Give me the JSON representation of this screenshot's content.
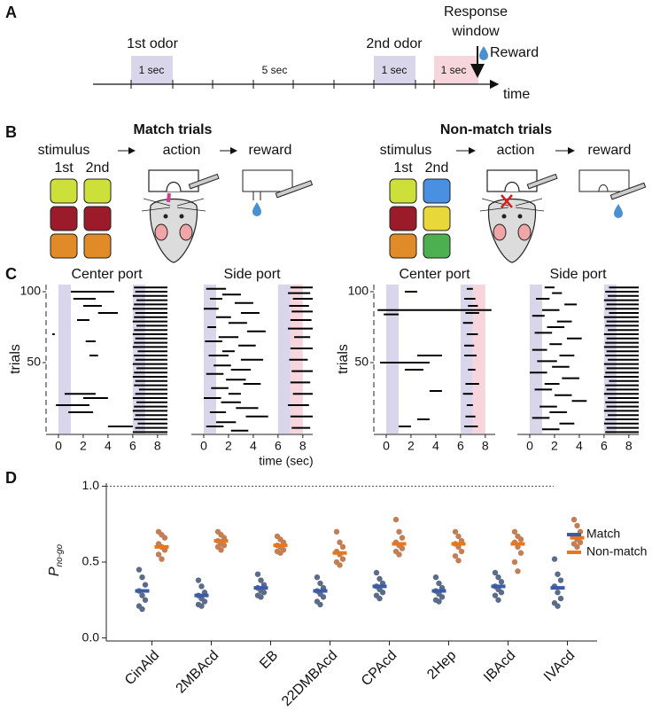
{
  "panel_a": {
    "label": "A",
    "first_odor": "1st odor",
    "second_odor": "2nd odor",
    "durations": [
      "1 sec",
      "5 sec",
      "1 sec",
      "1 sec"
    ],
    "response": [
      "Response",
      "window"
    ],
    "reward": "Reward",
    "time": "time"
  },
  "panel_b": {
    "label": "B",
    "match": {
      "title": "Match trials",
      "stimulus": "stimulus",
      "action": "action",
      "reward": "reward",
      "first": "1st",
      "second": "2nd"
    },
    "nonmatch": {
      "title": "Non-match trials",
      "stimulus": "stimulus",
      "action": "action",
      "reward": "reward",
      "first": "1st",
      "second": "2nd"
    }
  },
  "panel_c": {
    "label": "C"
  },
  "panel_d": {
    "label": "D"
  },
  "chart_data": [
    {
      "type": "raster",
      "title": "Center port",
      "ylabel": "trials",
      "xlim": [
        -1,
        8.8
      ],
      "ylim": [
        0,
        105
      ],
      "xticks": [
        0,
        2,
        4,
        6,
        8
      ],
      "yticks": [
        50,
        100
      ],
      "shading": [
        {
          "start": 0,
          "end": 1,
          "color": "#d9d5ea"
        },
        {
          "start": 6,
          "end": 7,
          "color": "#d9d5ea"
        }
      ],
      "bouts": [
        [
          100,
          1.0,
          4.5
        ],
        [
          95,
          1.2,
          3.0
        ],
        [
          90,
          2.0,
          3.5
        ],
        [
          85,
          3.2,
          4.8
        ],
        [
          80,
          1.5,
          2.5
        ],
        [
          70,
          -0.5,
          -0.3
        ],
        [
          65,
          2.2,
          3.0
        ],
        [
          55,
          2.5,
          3.2
        ],
        [
          28,
          0.5,
          3.0
        ],
        [
          25,
          2.0,
          4.0
        ],
        [
          20,
          -0.2,
          2.5
        ],
        [
          15,
          0.8,
          2.8
        ],
        [
          5,
          4.0,
          6.0
        ],
        [
          103,
          6.1,
          8.8
        ],
        [
          100,
          6.2,
          8.8
        ],
        [
          97,
          6.0,
          8.8
        ],
        [
          94,
          6.3,
          8.8
        ],
        [
          91,
          6.1,
          8.8
        ],
        [
          88,
          6.0,
          8.8
        ],
        [
          85,
          6.2,
          8.8
        ],
        [
          82,
          6.1,
          8.8
        ],
        [
          79,
          6.0,
          8.8
        ],
        [
          76,
          6.3,
          8.8
        ],
        [
          73,
          6.1,
          8.8
        ],
        [
          70,
          6.0,
          8.8
        ],
        [
          67,
          6.2,
          8.8
        ],
        [
          64,
          6.1,
          8.8
        ],
        [
          61,
          6.0,
          8.8
        ],
        [
          58,
          6.4,
          8.8
        ],
        [
          55,
          6.1,
          8.8
        ],
        [
          52,
          6.2,
          8.8
        ],
        [
          49,
          6.0,
          8.8
        ],
        [
          46,
          6.3,
          8.8
        ],
        [
          43,
          6.1,
          8.8
        ],
        [
          40,
          6.0,
          8.8
        ],
        [
          37,
          6.2,
          8.8
        ],
        [
          34,
          6.1,
          8.8
        ],
        [
          31,
          6.5,
          8.8
        ],
        [
          28,
          6.2,
          8.8
        ],
        [
          25,
          6.0,
          8.8
        ],
        [
          22,
          6.3,
          8.8
        ],
        [
          19,
          6.1,
          8.8
        ],
        [
          16,
          6.0,
          8.8
        ],
        [
          13,
          6.2,
          8.8
        ],
        [
          10,
          6.1,
          8.8
        ],
        [
          7,
          6.4,
          8.8
        ],
        [
          4,
          6.2,
          8.8
        ],
        [
          1,
          6.0,
          8.8
        ]
      ]
    },
    {
      "type": "raster",
      "title": "Side port",
      "xlabel": "time (sec)",
      "xlim": [
        -1,
        8.8
      ],
      "ylim": [
        0,
        105
      ],
      "xticks": [
        0,
        2,
        4,
        6,
        8
      ],
      "shading": [
        {
          "start": 0,
          "end": 1,
          "color": "#d9d5ea"
        },
        {
          "start": 6,
          "end": 7,
          "color": "#d9d5ea"
        },
        {
          "start": 7,
          "end": 8,
          "color": "#f6d6dc"
        }
      ],
      "bouts": [
        [
          102,
          0.2,
          1.8
        ],
        [
          98,
          1.5,
          3.0
        ],
        [
          95,
          0.5,
          1.5
        ],
        [
          92,
          2.5,
          4.0
        ],
        [
          88,
          0.0,
          1.2
        ],
        [
          85,
          3.0,
          4.5
        ],
        [
          82,
          1.0,
          2.2
        ],
        [
          78,
          2.0,
          3.5
        ],
        [
          75,
          0.3,
          1.0
        ],
        [
          72,
          3.5,
          5.0
        ],
        [
          68,
          1.2,
          2.8
        ],
        [
          65,
          0.1,
          1.5
        ],
        [
          62,
          2.8,
          4.2
        ],
        [
          58,
          1.5,
          2.5
        ],
        [
          55,
          0.4,
          2.0
        ],
        [
          52,
          3.0,
          4.8
        ],
        [
          48,
          0.8,
          2.2
        ],
        [
          45,
          2.2,
          3.8
        ],
        [
          42,
          0.2,
          1.6
        ],
        [
          38,
          1.8,
          3.4
        ],
        [
          35,
          3.2,
          4.6
        ],
        [
          32,
          0.6,
          2.0
        ],
        [
          28,
          2.0,
          3.0
        ],
        [
          25,
          0.0,
          1.4
        ],
        [
          22,
          1.4,
          3.0
        ],
        [
          18,
          2.6,
          4.4
        ],
        [
          15,
          0.5,
          1.8
        ],
        [
          12,
          3.4,
          5.2
        ],
        [
          8,
          1.0,
          2.6
        ],
        [
          5,
          0.2,
          1.6
        ],
        [
          2,
          2.2,
          3.6
        ],
        [
          103,
          7.0,
          8.8
        ],
        [
          99,
          6.8,
          8.6
        ],
        [
          95,
          7.2,
          8.8
        ],
        [
          90,
          6.9,
          8.5
        ],
        [
          86,
          7.1,
          8.8
        ],
        [
          80,
          7.0,
          8.7
        ],
        [
          74,
          6.8,
          8.8
        ],
        [
          68,
          7.3,
          8.6
        ],
        [
          60,
          7.0,
          8.8
        ],
        [
          52,
          6.9,
          8.4
        ],
        [
          44,
          7.1,
          8.8
        ],
        [
          36,
          7.0,
          8.6
        ],
        [
          28,
          7.2,
          8.8
        ],
        [
          20,
          6.8,
          8.5
        ],
        [
          12,
          7.0,
          8.8
        ],
        [
          4,
          7.1,
          8.6
        ]
      ]
    },
    {
      "type": "raster",
      "title": "Center port",
      "ylabel": "trials",
      "xlim": [
        -1,
        8.8
      ],
      "ylim": [
        0,
        105
      ],
      "xticks": [
        0,
        2,
        4,
        6,
        8
      ],
      "yticks": [
        50,
        100
      ],
      "shading": [
        {
          "start": 0,
          "end": 1,
          "color": "#d9d5ea"
        },
        {
          "start": 6,
          "end": 7,
          "color": "#d9d5ea"
        },
        {
          "start": 7,
          "end": 8,
          "color": "#f6d6dc"
        }
      ],
      "bouts": [
        [
          87,
          -0.7,
          8.5
        ],
        [
          100,
          1.5,
          2.5
        ],
        [
          84,
          -0.2,
          1.0
        ],
        [
          55,
          2.5,
          4.5
        ],
        [
          50,
          -0.5,
          3.5
        ],
        [
          45,
          1.5,
          3.0
        ],
        [
          30,
          3.5,
          4.5
        ],
        [
          10,
          2.5,
          3.5
        ],
        [
          5,
          1.0,
          2.0
        ],
        [
          102,
          6.5,
          7.0
        ],
        [
          95,
          6.3,
          7.2
        ],
        [
          90,
          6.6,
          7.4
        ],
        [
          85,
          6.4,
          7.5
        ],
        [
          78,
          6.2,
          7.0
        ],
        [
          70,
          6.5,
          7.4
        ],
        [
          62,
          6.3,
          7.1
        ],
        [
          55,
          6.3,
          7.3
        ],
        [
          45,
          6.6,
          7.2
        ],
        [
          35,
          6.4,
          7.5
        ],
        [
          28,
          6.2,
          7.0
        ],
        [
          20,
          6.5,
          7.0
        ],
        [
          12,
          6.4,
          7.2
        ],
        [
          5,
          6.3,
          7.4
        ]
      ]
    },
    {
      "type": "raster",
      "title": "Side port",
      "xlim": [
        -1,
        8.8
      ],
      "ylim": [
        0,
        105
      ],
      "xticks": [
        0,
        2,
        4,
        6,
        8
      ],
      "shading": [
        {
          "start": 0,
          "end": 1,
          "color": "#d9d5ea"
        },
        {
          "start": 6,
          "end": 7,
          "color": "#d9d5ea"
        }
      ],
      "bouts": [
        [
          103,
          1.2,
          2.0
        ],
        [
          99,
          1.8,
          2.6
        ],
        [
          95,
          0.5,
          1.6
        ],
        [
          91,
          2.8,
          3.8
        ],
        [
          87,
          1.0,
          2.4
        ],
        [
          83,
          0.2,
          1.2
        ],
        [
          79,
          2.2,
          3.4
        ],
        [
          75,
          1.4,
          2.8
        ],
        [
          71,
          0.4,
          1.8
        ],
        [
          67,
          3.0,
          4.2
        ],
        [
          63,
          1.6,
          2.6
        ],
        [
          59,
          0.2,
          1.4
        ],
        [
          55,
          2.4,
          3.6
        ],
        [
          51,
          0.6,
          2.2
        ],
        [
          47,
          1.8,
          3.2
        ],
        [
          43,
          0.0,
          1.4
        ],
        [
          39,
          2.6,
          4.0
        ],
        [
          35,
          1.2,
          2.4
        ],
        [
          31,
          0.4,
          1.8
        ],
        [
          27,
          2.0,
          3.4
        ],
        [
          23,
          3.4,
          4.6
        ],
        [
          19,
          0.8,
          2.2
        ],
        [
          15,
          1.6,
          3.0
        ],
        [
          11,
          0.2,
          1.6
        ],
        [
          7,
          2.4,
          3.6
        ],
        [
          3,
          1.0,
          2.4
        ],
        [
          103,
          6.4,
          8.8
        ],
        [
          100,
          6.1,
          8.8
        ],
        [
          97,
          6.3,
          8.8
        ],
        [
          94,
          6.0,
          8.8
        ],
        [
          91,
          6.2,
          8.8
        ],
        [
          88,
          6.1,
          8.8
        ],
        [
          85,
          6.4,
          8.8
        ],
        [
          82,
          6.0,
          8.8
        ],
        [
          79,
          6.2,
          8.8
        ],
        [
          76,
          6.1,
          8.8
        ],
        [
          73,
          6.3,
          8.8
        ],
        [
          70,
          6.0,
          8.8
        ],
        [
          67,
          6.2,
          8.8
        ],
        [
          64,
          6.1,
          8.8
        ],
        [
          61,
          6.0,
          8.8
        ],
        [
          58,
          6.2,
          8.8
        ],
        [
          55,
          6.1,
          8.8
        ],
        [
          52,
          6.3,
          8.8
        ],
        [
          49,
          6.0,
          8.8
        ],
        [
          46,
          6.2,
          8.8
        ],
        [
          43,
          6.1,
          8.8
        ],
        [
          40,
          6.0,
          8.8
        ],
        [
          37,
          6.4,
          8.8
        ],
        [
          34,
          6.1,
          8.8
        ],
        [
          31,
          6.2,
          8.8
        ],
        [
          28,
          6.0,
          8.8
        ],
        [
          25,
          6.3,
          8.8
        ],
        [
          22,
          6.1,
          8.8
        ],
        [
          19,
          6.2,
          8.8
        ],
        [
          16,
          6.0,
          8.8
        ],
        [
          13,
          6.3,
          8.8
        ],
        [
          10,
          6.1,
          8.8
        ],
        [
          7,
          6.0,
          8.8
        ],
        [
          4,
          6.2,
          8.8
        ],
        [
          1,
          6.1,
          8.8
        ]
      ]
    },
    {
      "type": "strip",
      "ylabel": "P",
      "ylabel_sub": "no-go",
      "ylim": [
        -0.02,
        1.02
      ],
      "yticks": [
        {
          "value": 0,
          "label": "0.0"
        },
        {
          "value": 0.5,
          "label": "0.5"
        },
        {
          "value": 1,
          "label": "1.0"
        }
      ],
      "hline": 1,
      "categories": [
        "CinAld",
        "2MBAcd",
        "EB",
        "22DMBAcd",
        "CPAcd",
        "2Hep",
        "IBAcd",
        "IVAcd"
      ],
      "legend": "upper right",
      "series": [
        {
          "name": "Match",
          "color": "#3a5ba8",
          "point_color": "#5b6b8a",
          "values": [
            0.31,
            0.28,
            0.33,
            0.31,
            0.34,
            0.31,
            0.34,
            0.33
          ],
          "points": [
            [
              0.45,
              0.4,
              0.35,
              0.31,
              0.28,
              0.25,
              0.21,
              0.19
            ],
            [
              0.38,
              0.34,
              0.3,
              0.28,
              0.26,
              0.24,
              0.22,
              0.21
            ],
            [
              0.42,
              0.38,
              0.35,
              0.33,
              0.31,
              0.3,
              0.28,
              0.27
            ],
            [
              0.4,
              0.36,
              0.33,
              0.31,
              0.29,
              0.27,
              0.24,
              0.22
            ],
            [
              0.43,
              0.39,
              0.36,
              0.34,
              0.32,
              0.3,
              0.28,
              0.26
            ],
            [
              0.4,
              0.36,
              0.33,
              0.31,
              0.29,
              0.27,
              0.25,
              0.24
            ],
            [
              0.43,
              0.4,
              0.37,
              0.34,
              0.32,
              0.3,
              0.28,
              0.25
            ],
            [
              0.52,
              0.42,
              0.38,
              0.34,
              0.3,
              0.26,
              0.23,
              0.21
            ]
          ]
        },
        {
          "name": "Non-match",
          "color": "#e8761e",
          "point_color": "#c27e55",
          "values": [
            0.6,
            0.64,
            0.61,
            0.56,
            0.62,
            0.62,
            0.62,
            0.66
          ],
          "points": [
            [
              0.7,
              0.68,
              0.66,
              0.62,
              0.6,
              0.58,
              0.55,
              0.52
            ],
            [
              0.7,
              0.68,
              0.66,
              0.64,
              0.62,
              0.61,
              0.6,
              0.58
            ],
            [
              0.67,
              0.65,
              0.63,
              0.61,
              0.6,
              0.58,
              0.57,
              0.56
            ],
            [
              0.7,
              0.63,
              0.6,
              0.57,
              0.55,
              0.52,
              0.5,
              0.48
            ],
            [
              0.78,
              0.7,
              0.66,
              0.63,
              0.61,
              0.59,
              0.57,
              0.55
            ],
            [
              0.7,
              0.67,
              0.64,
              0.62,
              0.6,
              0.57,
              0.54,
              0.51
            ],
            [
              0.7,
              0.67,
              0.65,
              0.63,
              0.6,
              0.56,
              0.5,
              0.44
            ],
            [
              0.78,
              0.74,
              0.7,
              0.67,
              0.65,
              0.63,
              0.62,
              0.6
            ]
          ]
        }
      ]
    }
  ]
}
